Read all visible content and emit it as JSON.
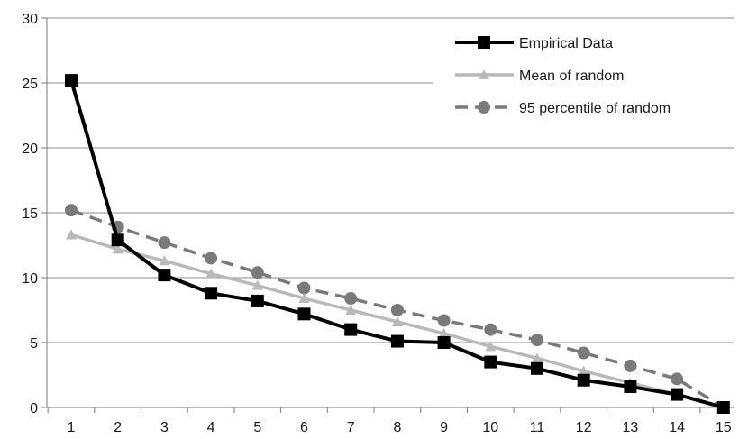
{
  "chart_data": {
    "type": "line",
    "title": "",
    "xlabel": "",
    "ylabel": "",
    "x": [
      1,
      2,
      3,
      4,
      5,
      6,
      7,
      8,
      9,
      10,
      11,
      12,
      13,
      14,
      15
    ],
    "ylim": [
      0,
      30
    ],
    "yticks": [
      0,
      5,
      10,
      15,
      20,
      25,
      30
    ],
    "grid": "horizontal",
    "legend_position": "top-right",
    "series": [
      {
        "name": "Empirical Data",
        "color": "#000000",
        "marker": "square",
        "dash": "solid",
        "values": [
          25.2,
          12.9,
          10.2,
          8.8,
          8.2,
          7.2,
          6.0,
          5.1,
          5.0,
          3.5,
          3.0,
          2.1,
          1.6,
          1.0,
          0.0
        ]
      },
      {
        "name": "Mean of random",
        "color": "#b9b9b9",
        "marker": "triangle",
        "dash": "solid",
        "values": [
          13.3,
          12.2,
          11.3,
          10.3,
          9.4,
          8.4,
          7.5,
          6.6,
          5.7,
          4.7,
          3.8,
          2.8,
          1.9,
          1.0,
          0.0
        ]
      },
      {
        "name": "95 percentile of random",
        "color": "#7a7a7a",
        "marker": "circle",
        "dash": "dashed",
        "values": [
          15.2,
          13.9,
          12.7,
          11.5,
          10.4,
          9.2,
          8.4,
          7.5,
          6.7,
          6.0,
          5.2,
          4.2,
          3.2,
          2.2,
          0.0
        ]
      }
    ]
  }
}
